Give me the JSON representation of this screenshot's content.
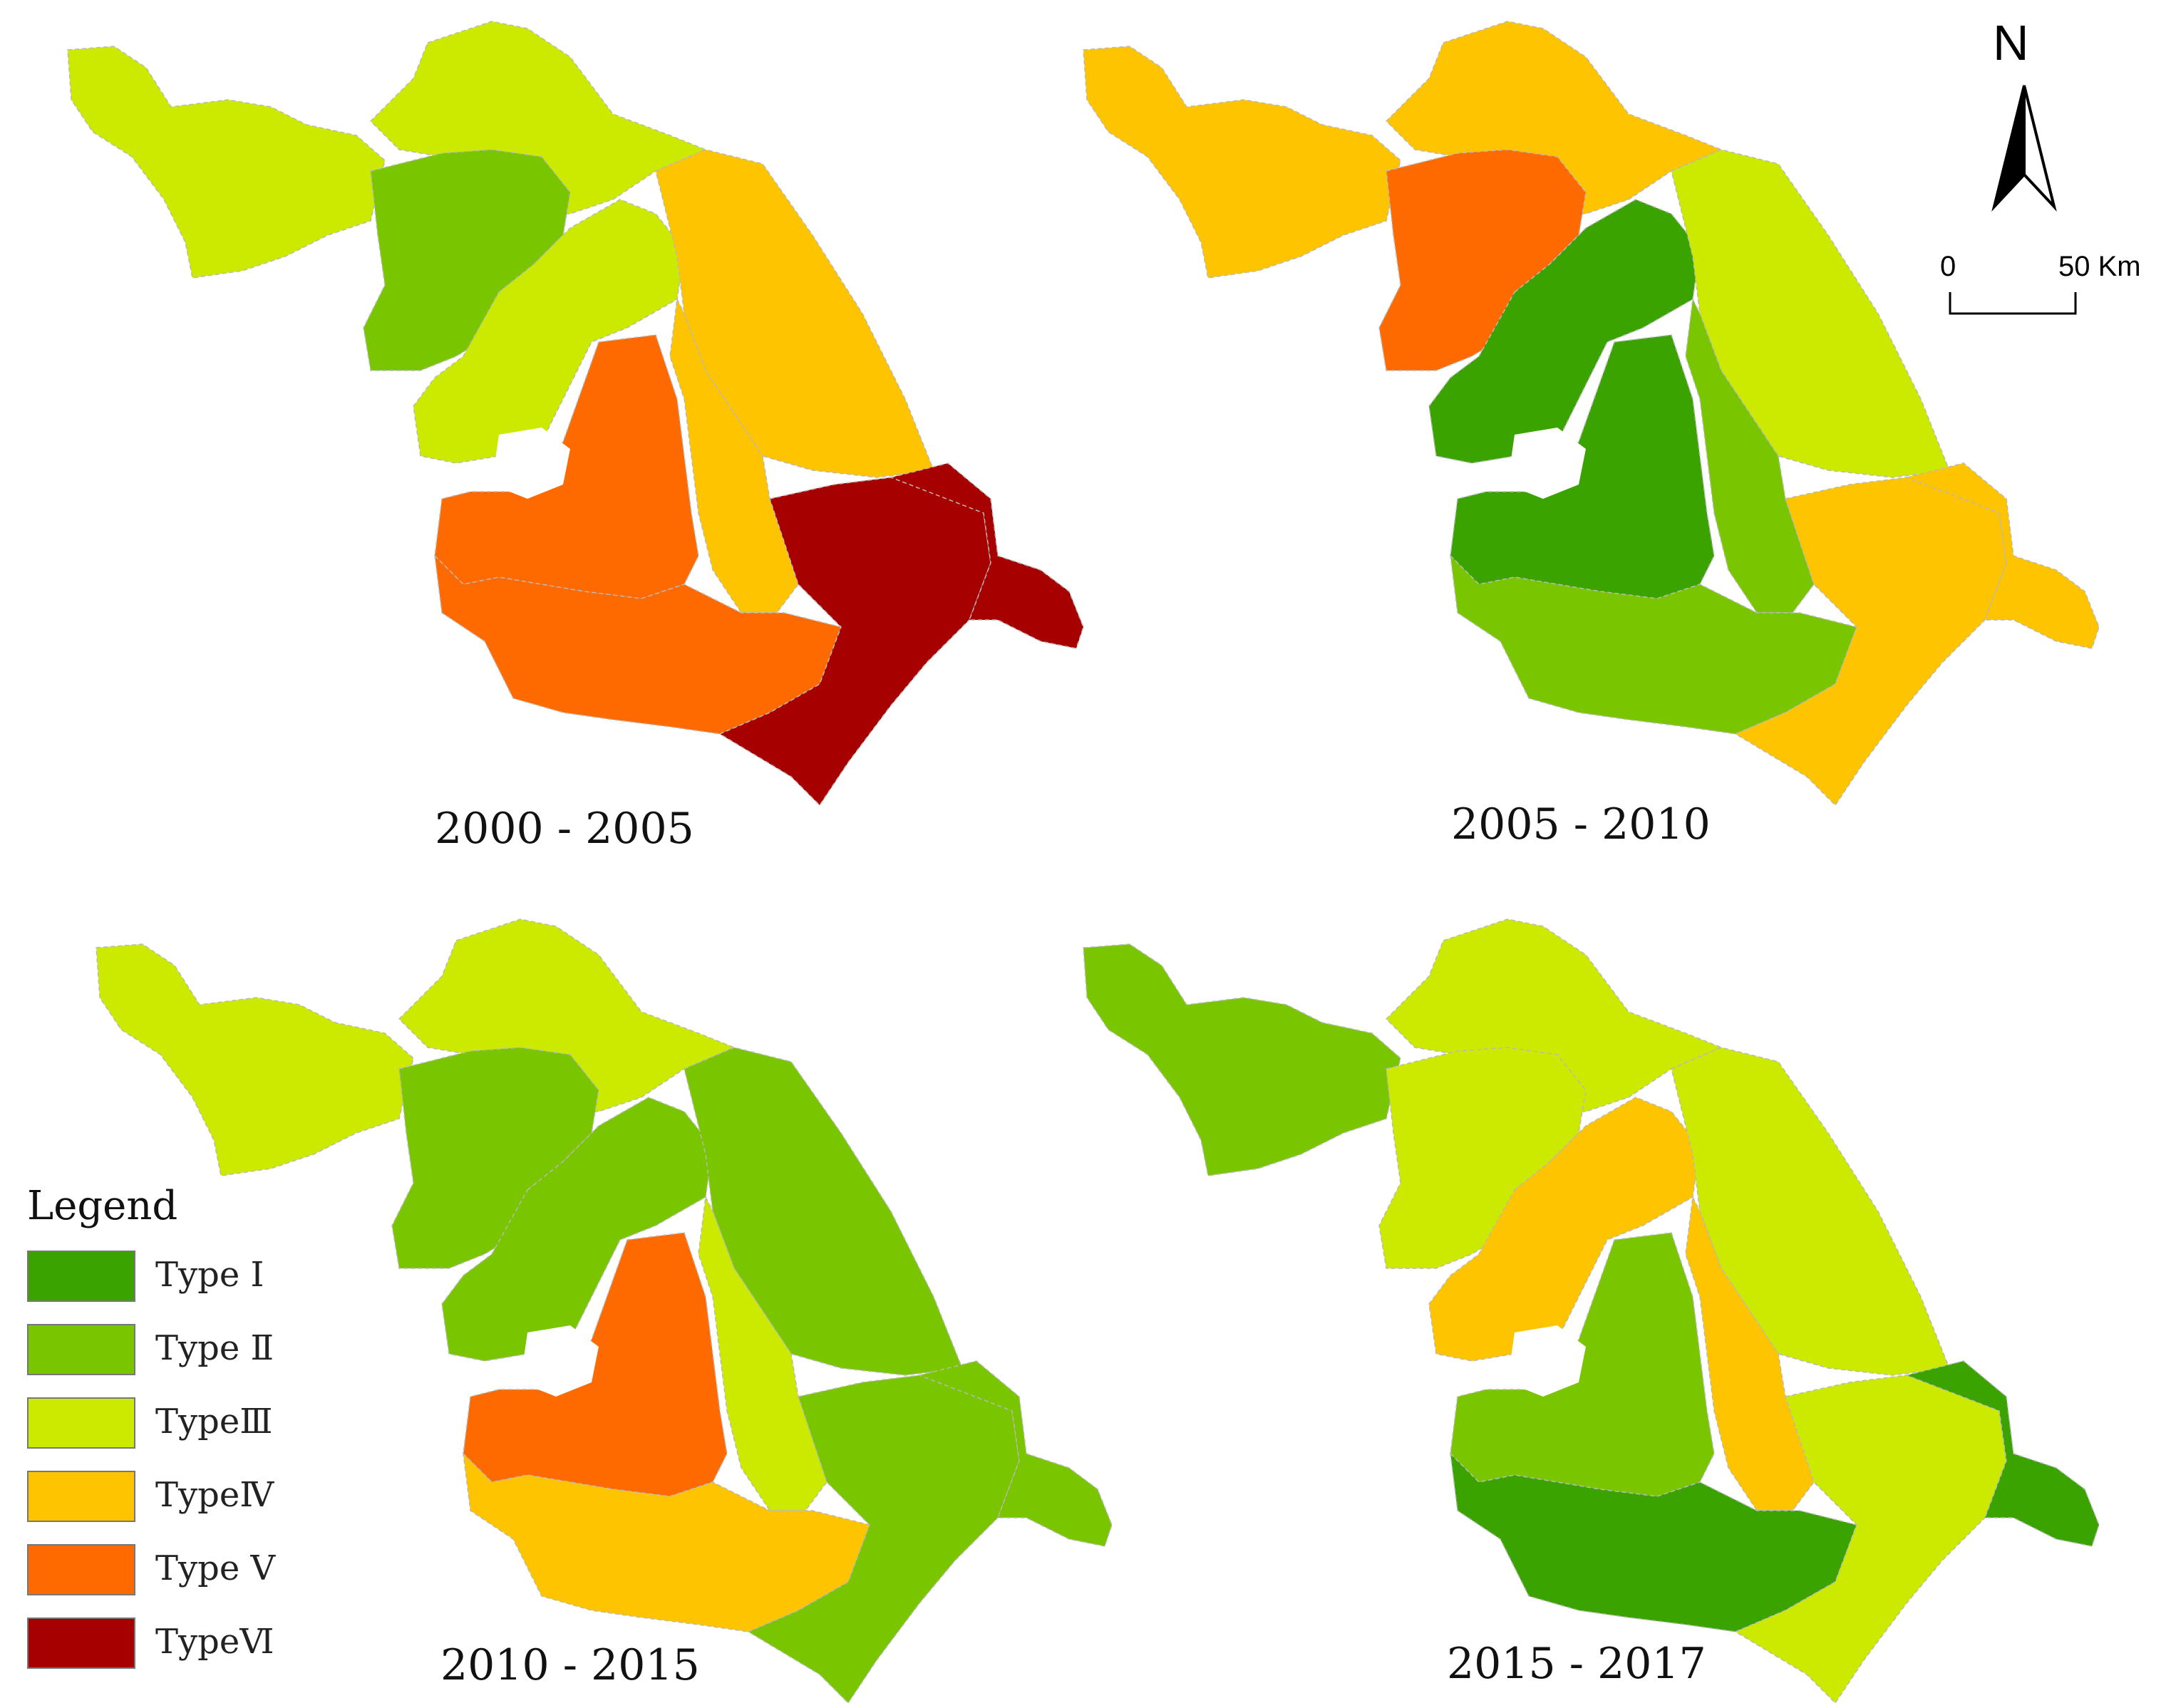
{
  "colors": {
    "type1": "#3aa300",
    "type2": "#78c500",
    "type3": "#ccea00",
    "type4": "#ffc400",
    "type5": "#ff6a00",
    "type6": "#a60000"
  },
  "north_arrow": {
    "letter": "N"
  },
  "scale_bar": {
    "start": "0",
    "end": "50 Km"
  },
  "legend": {
    "title": "Legend",
    "items": [
      {
        "key": "type1",
        "label": "Type Ⅰ"
      },
      {
        "key": "type2",
        "label": "Type Ⅱ"
      },
      {
        "key": "type3",
        "label": "TypeⅢ"
      },
      {
        "key": "type4",
        "label": "TypeⅣ"
      },
      {
        "key": "type5",
        "label": "Type Ⅴ"
      },
      {
        "key": "type6",
        "label": "TypeⅥ"
      }
    ]
  },
  "panels": [
    {
      "period": "2000 - 2005",
      "regions": {
        "nw": "type3",
        "xz_west": "type2",
        "n_coast": "type3",
        "center_n": "type3",
        "east": "type4",
        "mid_strip": "type4",
        "sw": "type5",
        "south": "type5",
        "se": "type6",
        "east_tip": "type6"
      }
    },
    {
      "period": "2005 - 2010",
      "regions": {
        "nw": "type4",
        "xz_west": "type5",
        "n_coast": "type4",
        "center_n": "type1",
        "east": "type3",
        "mid_strip": "type2",
        "sw": "type1",
        "south": "type2",
        "se": "type4",
        "east_tip": "type4"
      }
    },
    {
      "period": "2010 - 2015",
      "regions": {
        "nw": "type3",
        "xz_west": "type2",
        "n_coast": "type3",
        "center_n": "type2",
        "east": "type2",
        "mid_strip": "type3",
        "sw": "type5",
        "south": "type4",
        "se": "type2",
        "east_tip": "type2"
      }
    },
    {
      "period": "2015 - 2017",
      "regions": {
        "nw": "type2",
        "xz_west": "type3",
        "n_coast": "type3",
        "center_n": "type4",
        "east": "type3",
        "mid_strip": "type4",
        "sw": "type2",
        "south": "type1",
        "se": "type3",
        "east_tip": "type1"
      }
    }
  ]
}
